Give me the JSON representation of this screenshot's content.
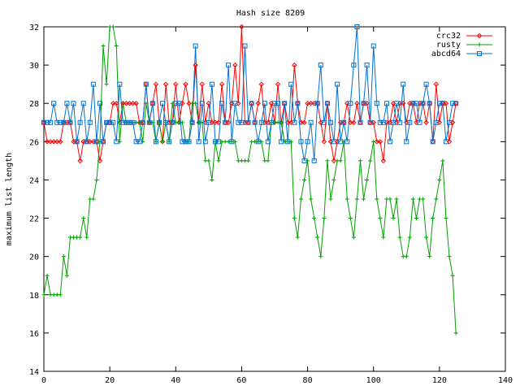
{
  "chart_data": {
    "type": "line",
    "title": "Hash size 8209",
    "xlabel": "",
    "ylabel": "maximum list length",
    "xlim": [
      0,
      140
    ],
    "ylim": [
      14,
      32
    ],
    "xticks": [
      0,
      20,
      40,
      60,
      80,
      100,
      120,
      140
    ],
    "yticks": [
      14,
      16,
      18,
      20,
      22,
      24,
      26,
      28,
      30,
      32
    ],
    "grid": false,
    "legend_position": "top-right",
    "series": [
      {
        "name": "crc32",
        "color": "#ff0000",
        "marker": "diamond",
        "x": [
          0,
          1,
          2,
          3,
          4,
          5,
          6,
          7,
          8,
          9,
          10,
          11,
          12,
          13,
          14,
          15,
          16,
          17,
          18,
          19,
          20,
          21,
          22,
          23,
          24,
          25,
          26,
          27,
          28,
          29,
          30,
          31,
          32,
          33,
          34,
          35,
          36,
          37,
          38,
          39,
          40,
          41,
          42,
          43,
          44,
          45,
          46,
          47,
          48,
          49,
          50,
          51,
          52,
          53,
          54,
          55,
          56,
          57,
          58,
          59,
          60,
          61,
          62,
          63,
          64,
          65,
          66,
          67,
          68,
          69,
          70,
          71,
          72,
          73,
          74,
          75,
          76,
          77,
          78,
          79,
          80,
          81,
          82,
          83,
          84,
          85,
          86,
          87,
          88,
          89,
          90,
          91,
          92,
          93,
          94,
          95,
          96,
          97,
          98,
          99,
          100,
          101,
          102,
          103,
          104,
          105,
          106,
          107,
          108,
          109,
          110,
          111,
          112,
          113,
          114,
          115,
          116,
          117,
          118,
          119,
          120,
          121,
          122,
          123,
          124,
          125
        ],
        "y": [
          27,
          26,
          26,
          26,
          26,
          26,
          27,
          27,
          27,
          26,
          26,
          25,
          26,
          26,
          26,
          26,
          26,
          25,
          26,
          27,
          27,
          28,
          28,
          27,
          28,
          28,
          28,
          28,
          28,
          27,
          27,
          29,
          27,
          28,
          29,
          27,
          26,
          29,
          27,
          27,
          29,
          27,
          28,
          29,
          28,
          27,
          30,
          27,
          29,
          27,
          28,
          27,
          27,
          27,
          29,
          27,
          27,
          28,
          30,
          28,
          32,
          27,
          27,
          28,
          27,
          28,
          29,
          27,
          27,
          28,
          27,
          29,
          27,
          28,
          27,
          27,
          30,
          28,
          27,
          27,
          28,
          28,
          28,
          28,
          27,
          26,
          28,
          26,
          25,
          26,
          27,
          27,
          28,
          27,
          27,
          28,
          27,
          28,
          28,
          27,
          27,
          26,
          26,
          25,
          27,
          27,
          28,
          27,
          28,
          28,
          27,
          28,
          28,
          27,
          28,
          28,
          27,
          28,
          26,
          29,
          27,
          28,
          28,
          26,
          27,
          28
        ]
      },
      {
        "name": "rusty",
        "color": "#00a000",
        "marker": "plus",
        "x": [
          0,
          1,
          2,
          3,
          4,
          5,
          6,
          7,
          8,
          9,
          10,
          11,
          12,
          13,
          14,
          15,
          16,
          17,
          18,
          19,
          20,
          21,
          22,
          23,
          24,
          25,
          26,
          27,
          28,
          29,
          30,
          31,
          32,
          33,
          34,
          35,
          36,
          37,
          38,
          39,
          40,
          41,
          42,
          43,
          44,
          45,
          46,
          47,
          48,
          49,
          50,
          51,
          52,
          53,
          54,
          55,
          56,
          57,
          58,
          59,
          60,
          61,
          62,
          63,
          64,
          65,
          66,
          67,
          68,
          69,
          70,
          71,
          72,
          73,
          74,
          75,
          76,
          77,
          78,
          79,
          80,
          81,
          82,
          83,
          84,
          85,
          86,
          87,
          88,
          89,
          90,
          91,
          92,
          93,
          94,
          95,
          96,
          97,
          98,
          99,
          100,
          101,
          102,
          103,
          104,
          105,
          106,
          107,
          108,
          109,
          110,
          111,
          112,
          113,
          114,
          115,
          116,
          117,
          118,
          119,
          120,
          121,
          122,
          123,
          124,
          125
        ],
        "y": [
          18,
          19,
          18,
          18,
          18,
          18,
          20,
          19,
          21,
          21,
          21,
          21,
          22,
          21,
          23,
          23,
          24,
          26,
          31,
          29,
          33,
          33,
          31,
          26,
          28,
          27,
          27,
          27,
          27,
          27,
          26,
          28,
          27,
          27,
          26,
          27,
          26,
          27,
          26,
          28,
          27,
          27,
          27,
          26,
          26,
          28,
          28,
          27,
          27,
          25,
          25,
          24,
          26,
          25,
          26,
          26,
          26,
          26,
          26,
          25,
          25,
          25,
          25,
          26,
          26,
          26,
          26,
          25,
          25,
          27,
          27,
          27,
          27,
          26,
          26,
          26,
          22,
          21,
          23,
          24,
          25,
          23,
          22,
          21,
          20,
          22,
          25,
          23,
          24,
          25,
          25,
          26,
          23,
          22,
          21,
          23,
          25,
          23,
          24,
          25,
          26,
          23,
          22,
          21,
          23,
          23,
          22,
          23,
          21,
          20,
          20,
          21,
          23,
          22,
          23,
          23,
          21,
          20,
          22,
          23,
          24,
          25,
          22,
          20,
          19,
          16
        ]
      },
      {
        "name": "abcd64",
        "color": "#0070d0",
        "marker": "square",
        "x": [
          0,
          1,
          2,
          3,
          4,
          5,
          6,
          7,
          8,
          9,
          10,
          11,
          12,
          13,
          14,
          15,
          16,
          17,
          18,
          19,
          20,
          21,
          22,
          23,
          24,
          25,
          26,
          27,
          28,
          29,
          30,
          31,
          32,
          33,
          34,
          35,
          36,
          37,
          38,
          39,
          40,
          41,
          42,
          43,
          44,
          45,
          46,
          47,
          48,
          49,
          50,
          51,
          52,
          53,
          54,
          55,
          56,
          57,
          58,
          59,
          60,
          61,
          62,
          63,
          64,
          65,
          66,
          67,
          68,
          69,
          70,
          71,
          72,
          73,
          74,
          75,
          76,
          77,
          78,
          79,
          80,
          81,
          82,
          83,
          84,
          85,
          86,
          87,
          88,
          89,
          90,
          91,
          92,
          93,
          94,
          95,
          96,
          97,
          98,
          99,
          100,
          101,
          102,
          103,
          104,
          105,
          106,
          107,
          108,
          109,
          110,
          111,
          112,
          113,
          114,
          115,
          116,
          117,
          118,
          119,
          120,
          121,
          122,
          123,
          124,
          125
        ],
        "y": [
          27,
          27,
          27,
          28,
          27,
          27,
          27,
          28,
          27,
          28,
          26,
          27,
          28,
          26,
          27,
          29,
          26,
          28,
          26,
          27,
          27,
          27,
          26,
          29,
          27,
          27,
          27,
          27,
          26,
          26,
          27,
          29,
          27,
          28,
          26,
          27,
          28,
          27,
          26,
          27,
          28,
          28,
          26,
          26,
          26,
          27,
          31,
          26,
          28,
          26,
          27,
          29,
          26,
          26,
          28,
          27,
          30,
          26,
          28,
          27,
          27,
          31,
          27,
          28,
          27,
          26,
          27,
          28,
          26,
          27,
          28,
          28,
          26,
          28,
          26,
          29,
          27,
          28,
          26,
          25,
          26,
          27,
          25,
          28,
          30,
          27,
          28,
          27,
          26,
          29,
          26,
          27,
          26,
          28,
          30,
          32,
          27,
          28,
          30,
          27,
          31,
          28,
          27,
          27,
          28,
          26,
          27,
          28,
          27,
          29,
          26,
          27,
          28,
          28,
          27,
          28,
          29,
          28,
          26,
          27,
          28,
          28,
          26,
          27,
          28,
          28
        ]
      }
    ]
  }
}
